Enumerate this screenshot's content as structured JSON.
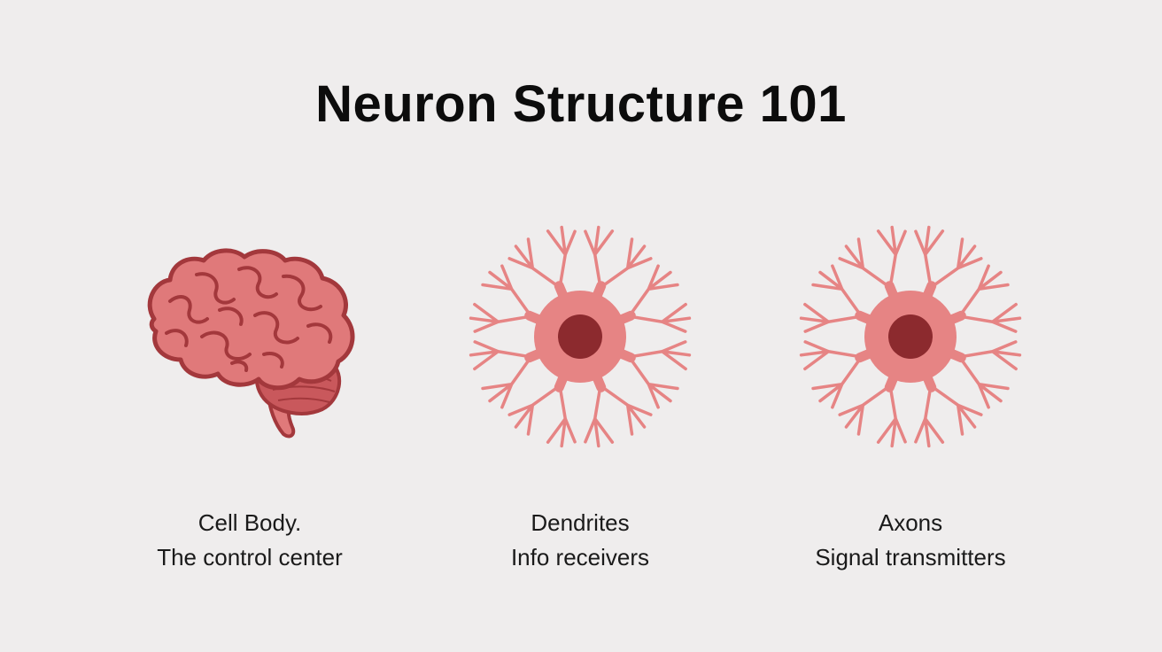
{
  "title": "Neuron Structure 101",
  "colors": {
    "background": "#efeded",
    "brain_fill": "#e0797a",
    "brain_outline": "#a3383c",
    "neuron_fill": "#e68484",
    "nucleus": "#8c2a2e"
  },
  "panels": [
    {
      "icon": "brain-icon",
      "heading": "Cell Body.",
      "subtitle": "The control center"
    },
    {
      "icon": "neuron-icon",
      "heading": "Dendrites",
      "subtitle": "Info receivers"
    },
    {
      "icon": "neuron-icon",
      "heading": "Axons",
      "subtitle": "Signal transmitters"
    }
  ]
}
